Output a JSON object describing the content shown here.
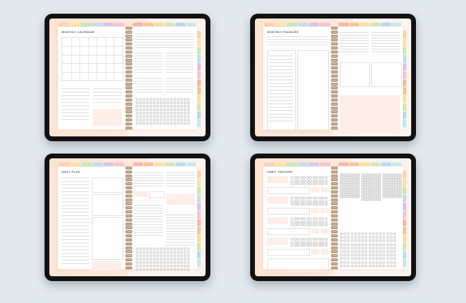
{
  "colors": {
    "background": "#e4e9ef",
    "bezel": "#111111",
    "page_backdrop": "#fde3d2",
    "tabs": [
      "#fcd3b3",
      "#fbe7a5",
      "#c9e8b5",
      "#bfe0f3",
      "#d9c5ee",
      "#f6c4d6",
      "#f8b7a8",
      "#f9c596",
      "#fbe39c",
      "#cfeab1",
      "#b9d9f5",
      "#c2ecec"
    ]
  },
  "tablets": [
    {
      "id": "monthly-calendar",
      "title": "MONTHLY CALENDAR",
      "layout": "calendar"
    },
    {
      "id": "monthly-finances",
      "title": "MONTHLY FINANCES",
      "layout": "finances"
    },
    {
      "id": "daily-plan",
      "title": "DAILY PLAN",
      "layout": "daily"
    },
    {
      "id": "habit-tracker",
      "title": "HABIT TRACKER",
      "layout": "habit"
    }
  ]
}
